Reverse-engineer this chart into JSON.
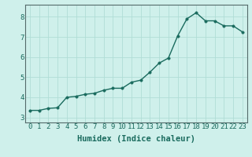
{
  "x": [
    0,
    1,
    2,
    3,
    4,
    5,
    6,
    7,
    8,
    9,
    10,
    11,
    12,
    13,
    14,
    15,
    16,
    17,
    18,
    19,
    20,
    21,
    22,
    23
  ],
  "y": [
    3.35,
    3.35,
    3.45,
    3.48,
    4.0,
    4.05,
    4.15,
    4.2,
    4.35,
    4.45,
    4.45,
    4.75,
    4.85,
    5.25,
    5.7,
    5.95,
    7.05,
    7.9,
    8.2,
    7.8,
    7.8,
    7.55,
    7.55,
    7.25
  ],
  "line_color": "#1a6b5e",
  "marker_color": "#1a6b5e",
  "bg_color": "#cff0eb",
  "grid_color": "#b0ddd6",
  "tick_color": "#1a6b5e",
  "xlabel": "Humidex (Indice chaleur)",
  "xlim": [
    -0.5,
    23.5
  ],
  "ylim": [
    2.75,
    8.6
  ],
  "yticks": [
    3,
    4,
    5,
    6,
    7,
    8
  ],
  "xticks": [
    0,
    1,
    2,
    3,
    4,
    5,
    6,
    7,
    8,
    9,
    10,
    11,
    12,
    13,
    14,
    15,
    16,
    17,
    18,
    19,
    20,
    21,
    22,
    23
  ],
  "line_width": 1.0,
  "marker_size": 2.5,
  "xlabel_fontsize": 7.5,
  "tick_fontsize": 6.5
}
